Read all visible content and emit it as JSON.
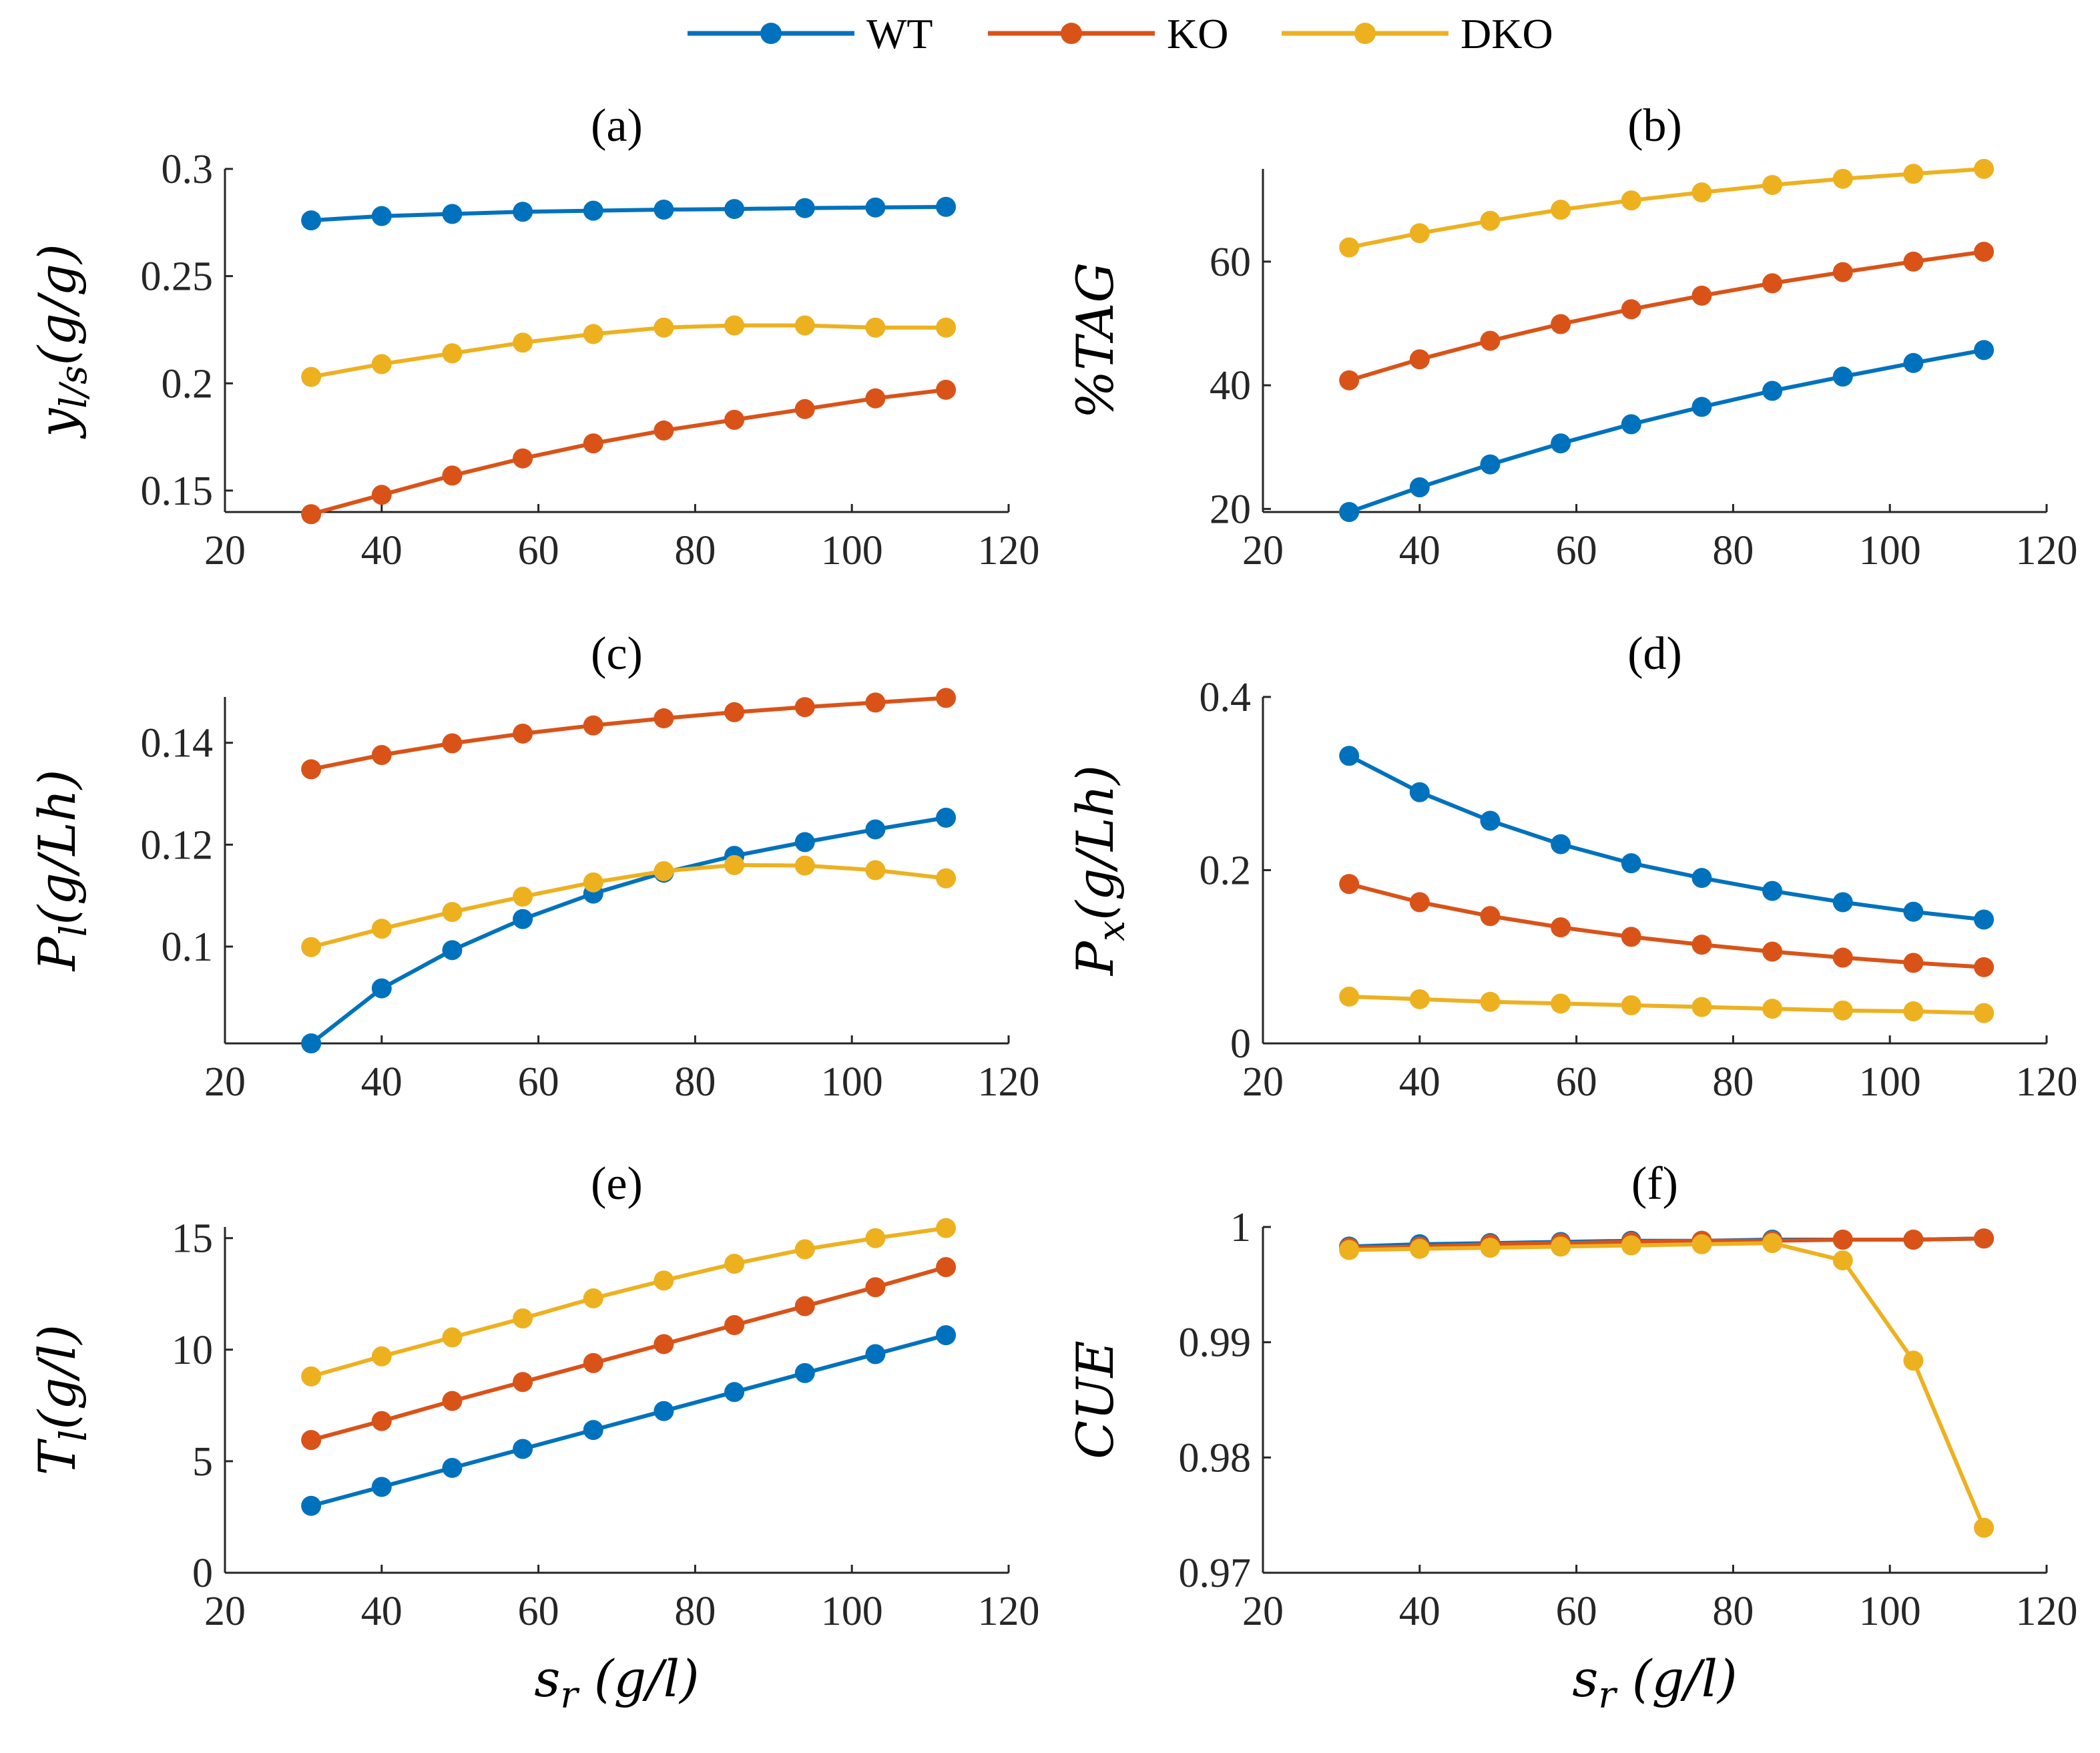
{
  "legend": [
    {
      "name": "WT",
      "color": "#0072BD"
    },
    {
      "name": "KO",
      "color": "#D95319"
    },
    {
      "name": "DKO",
      "color": "#EDB120"
    }
  ],
  "chart_data": [
    {
      "type": "line",
      "title": "(a)",
      "ylabel": "y_{l/s}(g/g)",
      "xlabel": "",
      "xlim": [
        20,
        120
      ],
      "ylim": [
        0.14,
        0.3
      ],
      "xticks": [
        20,
        40,
        60,
        80,
        100,
        120
      ],
      "yticks": [
        0.15,
        0.2,
        0.25,
        0.3
      ],
      "ytick_labels": [
        "0.15",
        "0.2",
        "0.25",
        "0.3"
      ],
      "x": [
        31,
        40,
        49,
        58,
        67,
        76,
        85,
        94,
        103,
        112
      ],
      "series": [
        {
          "name": "WT",
          "values": [
            0.276,
            0.278,
            0.279,
            0.28,
            0.2805,
            0.281,
            0.2813,
            0.2817,
            0.282,
            0.2823
          ]
        },
        {
          "name": "KO",
          "values": [
            0.139,
            0.148,
            0.157,
            0.165,
            0.172,
            0.178,
            0.183,
            0.188,
            0.193,
            0.197
          ]
        },
        {
          "name": "DKO",
          "values": [
            0.203,
            0.209,
            0.214,
            0.219,
            0.223,
            0.226,
            0.227,
            0.227,
            0.226,
            0.226
          ]
        }
      ]
    },
    {
      "type": "line",
      "title": "(b)",
      "ylabel": "%TAG",
      "xlabel": "",
      "xlim": [
        20,
        120
      ],
      "ylim": [
        19.5,
        75
      ],
      "xticks": [
        20,
        40,
        60,
        80,
        100,
        120
      ],
      "yticks": [
        20,
        40,
        60
      ],
      "ytick_labels": [
        "20",
        "40",
        "60"
      ],
      "x": [
        31,
        40,
        49,
        58,
        67,
        76,
        85,
        94,
        103,
        112
      ],
      "series": [
        {
          "name": "WT",
          "values": [
            19.5,
            23.5,
            27.2,
            30.6,
            33.7,
            36.5,
            39.1,
            41.4,
            43.6,
            45.7
          ]
        },
        {
          "name": "KO",
          "values": [
            40.8,
            44.2,
            47.2,
            49.9,
            52.3,
            54.5,
            56.5,
            58.3,
            60.0,
            61.6
          ]
        },
        {
          "name": "DKO",
          "values": [
            62.3,
            64.6,
            66.6,
            68.4,
            69.9,
            71.2,
            72.4,
            73.4,
            74.2,
            75.0
          ]
        }
      ]
    },
    {
      "type": "line",
      "title": "(c)",
      "ylabel": "P_l(g/Lh)",
      "xlabel": "",
      "xlim": [
        20,
        120
      ],
      "ylim": [
        0.081,
        0.149
      ],
      "xticks": [
        20,
        40,
        60,
        80,
        100,
        120
      ],
      "yticks": [
        0.1,
        0.12,
        0.14
      ],
      "ytick_labels": [
        "0.1",
        "0.12",
        "0.14"
      ],
      "x": [
        31,
        40,
        49,
        58,
        67,
        76,
        85,
        94,
        103,
        112
      ],
      "series": [
        {
          "name": "WT",
          "values": [
            0.081,
            0.0918,
            0.0993,
            0.1054,
            0.1104,
            0.1145,
            0.1178,
            0.1205,
            0.123,
            0.1253
          ]
        },
        {
          "name": "KO",
          "values": [
            0.1348,
            0.1376,
            0.1399,
            0.1418,
            0.1434,
            0.1448,
            0.146,
            0.147,
            0.1479,
            0.1488
          ]
        },
        {
          "name": "DKO",
          "values": [
            0.0999,
            0.1035,
            0.1068,
            0.1098,
            0.1126,
            0.1148,
            0.116,
            0.1159,
            0.115,
            0.1134
          ]
        }
      ]
    },
    {
      "type": "line",
      "title": "(d)",
      "ylabel": "P_x(g/Lh)",
      "xlabel": "",
      "xlim": [
        20,
        120
      ],
      "ylim": [
        0,
        0.4
      ],
      "xticks": [
        20,
        40,
        60,
        80,
        100,
        120
      ],
      "yticks": [
        0,
        0.2,
        0.4
      ],
      "ytick_labels": [
        "0",
        "0.2",
        "0.4"
      ],
      "x": [
        31,
        40,
        49,
        58,
        67,
        76,
        85,
        94,
        103,
        112
      ],
      "series": [
        {
          "name": "WT",
          "values": [
            0.332,
            0.29,
            0.257,
            0.23,
            0.208,
            0.191,
            0.176,
            0.163,
            0.152,
            0.143
          ]
        },
        {
          "name": "KO",
          "values": [
            0.184,
            0.163,
            0.147,
            0.134,
            0.123,
            0.114,
            0.106,
            0.099,
            0.093,
            0.088
          ]
        },
        {
          "name": "DKO",
          "values": [
            0.054,
            0.051,
            0.048,
            0.046,
            0.044,
            0.042,
            0.04,
            0.038,
            0.037,
            0.035
          ]
        }
      ]
    },
    {
      "type": "line",
      "title": "(e)",
      "ylabel": "T_l(g/l)",
      "xlabel": "s_r  (g/l)",
      "xlim": [
        20,
        120
      ],
      "ylim": [
        0,
        15.5
      ],
      "xticks": [
        20,
        40,
        60,
        80,
        100,
        120
      ],
      "yticks": [
        0,
        5,
        10,
        15
      ],
      "ytick_labels": [
        "0",
        "5",
        "10",
        "15"
      ],
      "x": [
        31,
        40,
        49,
        58,
        67,
        76,
        85,
        94,
        103,
        112
      ],
      "series": [
        {
          "name": "WT",
          "values": [
            3.0,
            3.85,
            4.7,
            5.55,
            6.4,
            7.25,
            8.1,
            8.95,
            9.8,
            10.65
          ]
        },
        {
          "name": "KO",
          "values": [
            5.95,
            6.8,
            7.7,
            8.55,
            9.4,
            10.25,
            11.1,
            11.95,
            12.8,
            13.7
          ]
        },
        {
          "name": "DKO",
          "values": [
            8.8,
            9.7,
            10.55,
            11.4,
            12.3,
            13.1,
            13.85,
            14.5,
            15.0,
            15.45
          ]
        }
      ]
    },
    {
      "type": "line",
      "title": "(f)",
      "ylabel": "CUE",
      "xlabel": "s_r  (g/l)",
      "xlim": [
        20,
        120
      ],
      "ylim": [
        0.97,
        1.0
      ],
      "xticks": [
        20,
        40,
        60,
        80,
        100,
        120
      ],
      "yticks": [
        0.97,
        0.98,
        0.99,
        1.0
      ],
      "ytick_labels": [
        "0.97",
        "0.98",
        "0.99",
        "1"
      ],
      "x": [
        31,
        40,
        49,
        58,
        67,
        76,
        85,
        94,
        103,
        112
      ],
      "series": [
        {
          "name": "WT",
          "values": [
            0.9983,
            0.9985,
            0.9986,
            0.9987,
            0.9988,
            0.9988,
            0.9989,
            0.9989,
            0.9989,
            0.999
          ]
        },
        {
          "name": "KO",
          "values": [
            0.9982,
            0.9983,
            0.9985,
            0.9986,
            0.9987,
            0.9988,
            0.9988,
            0.9989,
            0.9989,
            0.999
          ]
        },
        {
          "name": "DKO",
          "values": [
            0.998,
            0.9981,
            0.9982,
            0.9983,
            0.9984,
            0.9985,
            0.9986,
            0.9971,
            0.9884,
            0.9739
          ]
        }
      ]
    }
  ]
}
